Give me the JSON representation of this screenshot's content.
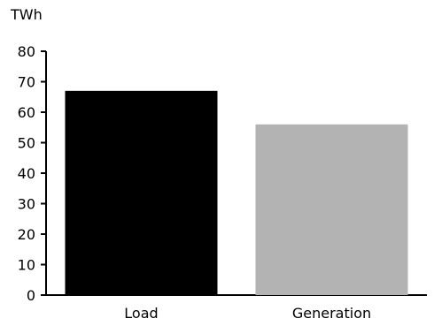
{
  "chart_data": {
    "type": "bar",
    "unit_label": "TWh",
    "categories": [
      "Load",
      "Generation"
    ],
    "values": [
      67,
      56
    ],
    "colors": [
      "#000000",
      "#b3b3b3"
    ],
    "ylim": [
      0,
      80
    ],
    "yticks": [
      "0",
      "10",
      "20",
      "30",
      "40",
      "50",
      "60",
      "70",
      "80"
    ],
    "grid": false,
    "legend": "none"
  }
}
